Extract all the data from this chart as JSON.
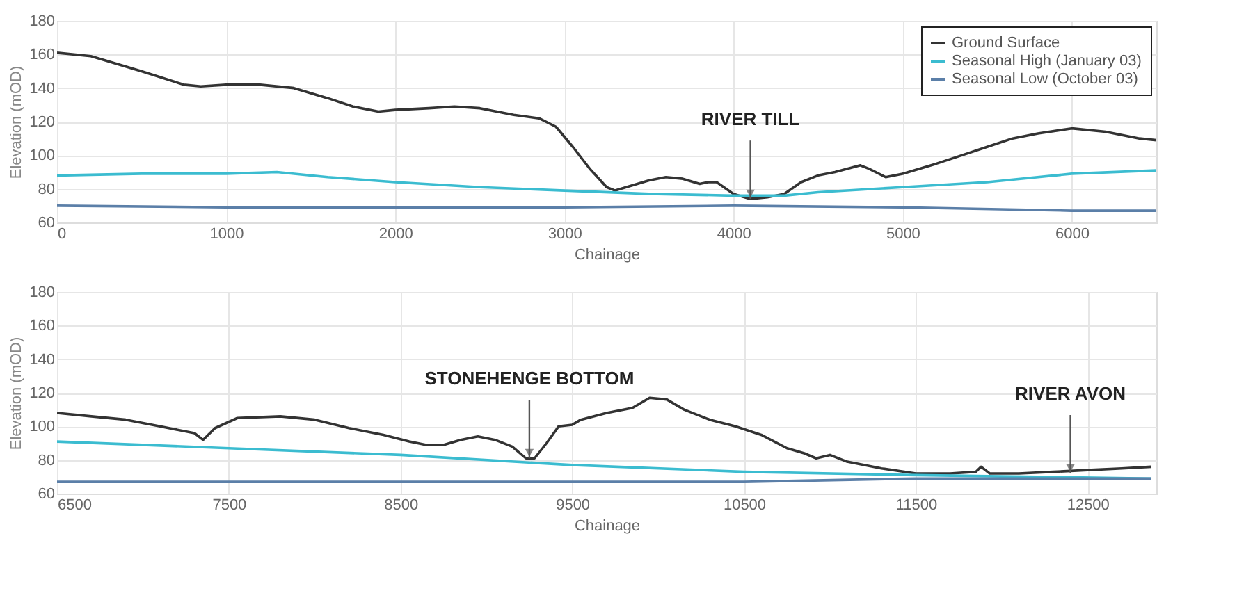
{
  "chart_data": [
    {
      "type": "line",
      "xlabel": "Chainage",
      "ylabel": "Elevation (mOD)",
      "xlim": [
        0,
        6500
      ],
      "xticks": [
        0,
        1000,
        2000,
        3000,
        4000,
        5000,
        6000
      ],
      "ylim": [
        60,
        180
      ],
      "yticks": [
        60,
        80,
        100,
        120,
        140,
        160,
        180
      ],
      "grid": true,
      "legend": "top right",
      "line_style": "solid",
      "marker": "none",
      "series": [
        {
          "name": "Ground Surface",
          "color": "#333333",
          "x": [
            0,
            200,
            500,
            750,
            850,
            1000,
            1200,
            1400,
            1600,
            1750,
            1900,
            2000,
            2200,
            2350,
            2500,
            2700,
            2850,
            2950,
            3050,
            3150,
            3250,
            3300,
            3400,
            3500,
            3600,
            3700,
            3800,
            3850,
            3900,
            4000,
            4100,
            4200,
            4300,
            4400,
            4500,
            4600,
            4750,
            4800,
            4900,
            5000,
            5100,
            5200,
            5350,
            5500,
            5650,
            5800,
            6000,
            6200,
            6400,
            6500
          ],
          "values": [
            161,
            159,
            150,
            142,
            141,
            142,
            142,
            140,
            134,
            129,
            126,
            127,
            128,
            129,
            128,
            124,
            122,
            117,
            105,
            92,
            81,
            79,
            82,
            85,
            87,
            86,
            83,
            84,
            84,
            77,
            74,
            75,
            77,
            84,
            88,
            90,
            94,
            92,
            87,
            89,
            92,
            95,
            100,
            105,
            110,
            113,
            116,
            114,
            110,
            109
          ]
        },
        {
          "name": "Seasonal High (January 03)",
          "color": "#3bbcd0",
          "x": [
            0,
            500,
            1000,
            1300,
            1600,
            2000,
            2500,
            3000,
            3500,
            4000,
            4300,
            4500,
            5000,
            5500,
            6000,
            6500
          ],
          "values": [
            88,
            89,
            89,
            90,
            87,
            84,
            81,
            79,
            77,
            76,
            76,
            78,
            81,
            84,
            89,
            91
          ]
        },
        {
          "name": "Seasonal Low (October 03)",
          "color": "#5b7fa8",
          "x": [
            0,
            1000,
            2000,
            3000,
            4000,
            5000,
            6000,
            6500
          ],
          "values": [
            70,
            69,
            69,
            69,
            70,
            69,
            67,
            67
          ]
        }
      ],
      "annotations": [
        {
          "text": "RIVER TILL",
          "x": 4100,
          "y": 74
        }
      ]
    },
    {
      "type": "line",
      "xlabel": "Chainage",
      "ylabel": "Elevation (mOD)",
      "xlim": [
        6500,
        12900
      ],
      "xticks": [
        6500,
        7500,
        8500,
        9500,
        10500,
        11500,
        12500
      ],
      "ylim": [
        60,
        180
      ],
      "yticks": [
        60,
        80,
        100,
        120,
        140,
        160,
        180
      ],
      "grid": true,
      "legend": "top right",
      "line_style": "solid",
      "marker": "none",
      "series": [
        {
          "name": "Ground Surface",
          "color": "#333333",
          "x": [
            6500,
            6700,
            6900,
            7100,
            7300,
            7350,
            7420,
            7550,
            7800,
            8000,
            8200,
            8400,
            8550,
            8650,
            8750,
            8850,
            8950,
            9050,
            9150,
            9230,
            9280,
            9350,
            9420,
            9500,
            9550,
            9700,
            9850,
            9950,
            10050,
            10150,
            10300,
            10450,
            10600,
            10750,
            10850,
            10920,
            11000,
            11100,
            11300,
            11500,
            11700,
            11850,
            11880,
            11930,
            12100,
            12300,
            12500,
            12700,
            12870
          ],
          "values": [
            108,
            106,
            104,
            100,
            96,
            92,
            99,
            105,
            106,
            104,
            99,
            95,
            91,
            89,
            89,
            92,
            94,
            92,
            88,
            81,
            81,
            90,
            100,
            101,
            104,
            108,
            111,
            117,
            116,
            110,
            104,
            100,
            95,
            87,
            84,
            81,
            83,
            79,
            75,
            72,
            72,
            73,
            76,
            72,
            72,
            73,
            74,
            75,
            76
          ]
        },
        {
          "name": "Seasonal High (January 03)",
          "color": "#3bbcd0",
          "x": [
            6500,
            7500,
            8500,
            9500,
            10500,
            11500,
            12870
          ],
          "values": [
            91,
            87,
            83,
            77,
            73,
            71,
            69
          ]
        },
        {
          "name": "Seasonal Low (October 03)",
          "color": "#5b7fa8",
          "x": [
            6500,
            8500,
            9500,
            10500,
            11500,
            12870
          ],
          "values": [
            67,
            67,
            67,
            67,
            69,
            69
          ]
        }
      ],
      "annotations": [
        {
          "text": "STONEHENGE BOTTOM",
          "x": 9250,
          "y": 81
        },
        {
          "text": "RIVER AVON",
          "x": 12400,
          "y": 72
        }
      ]
    }
  ]
}
